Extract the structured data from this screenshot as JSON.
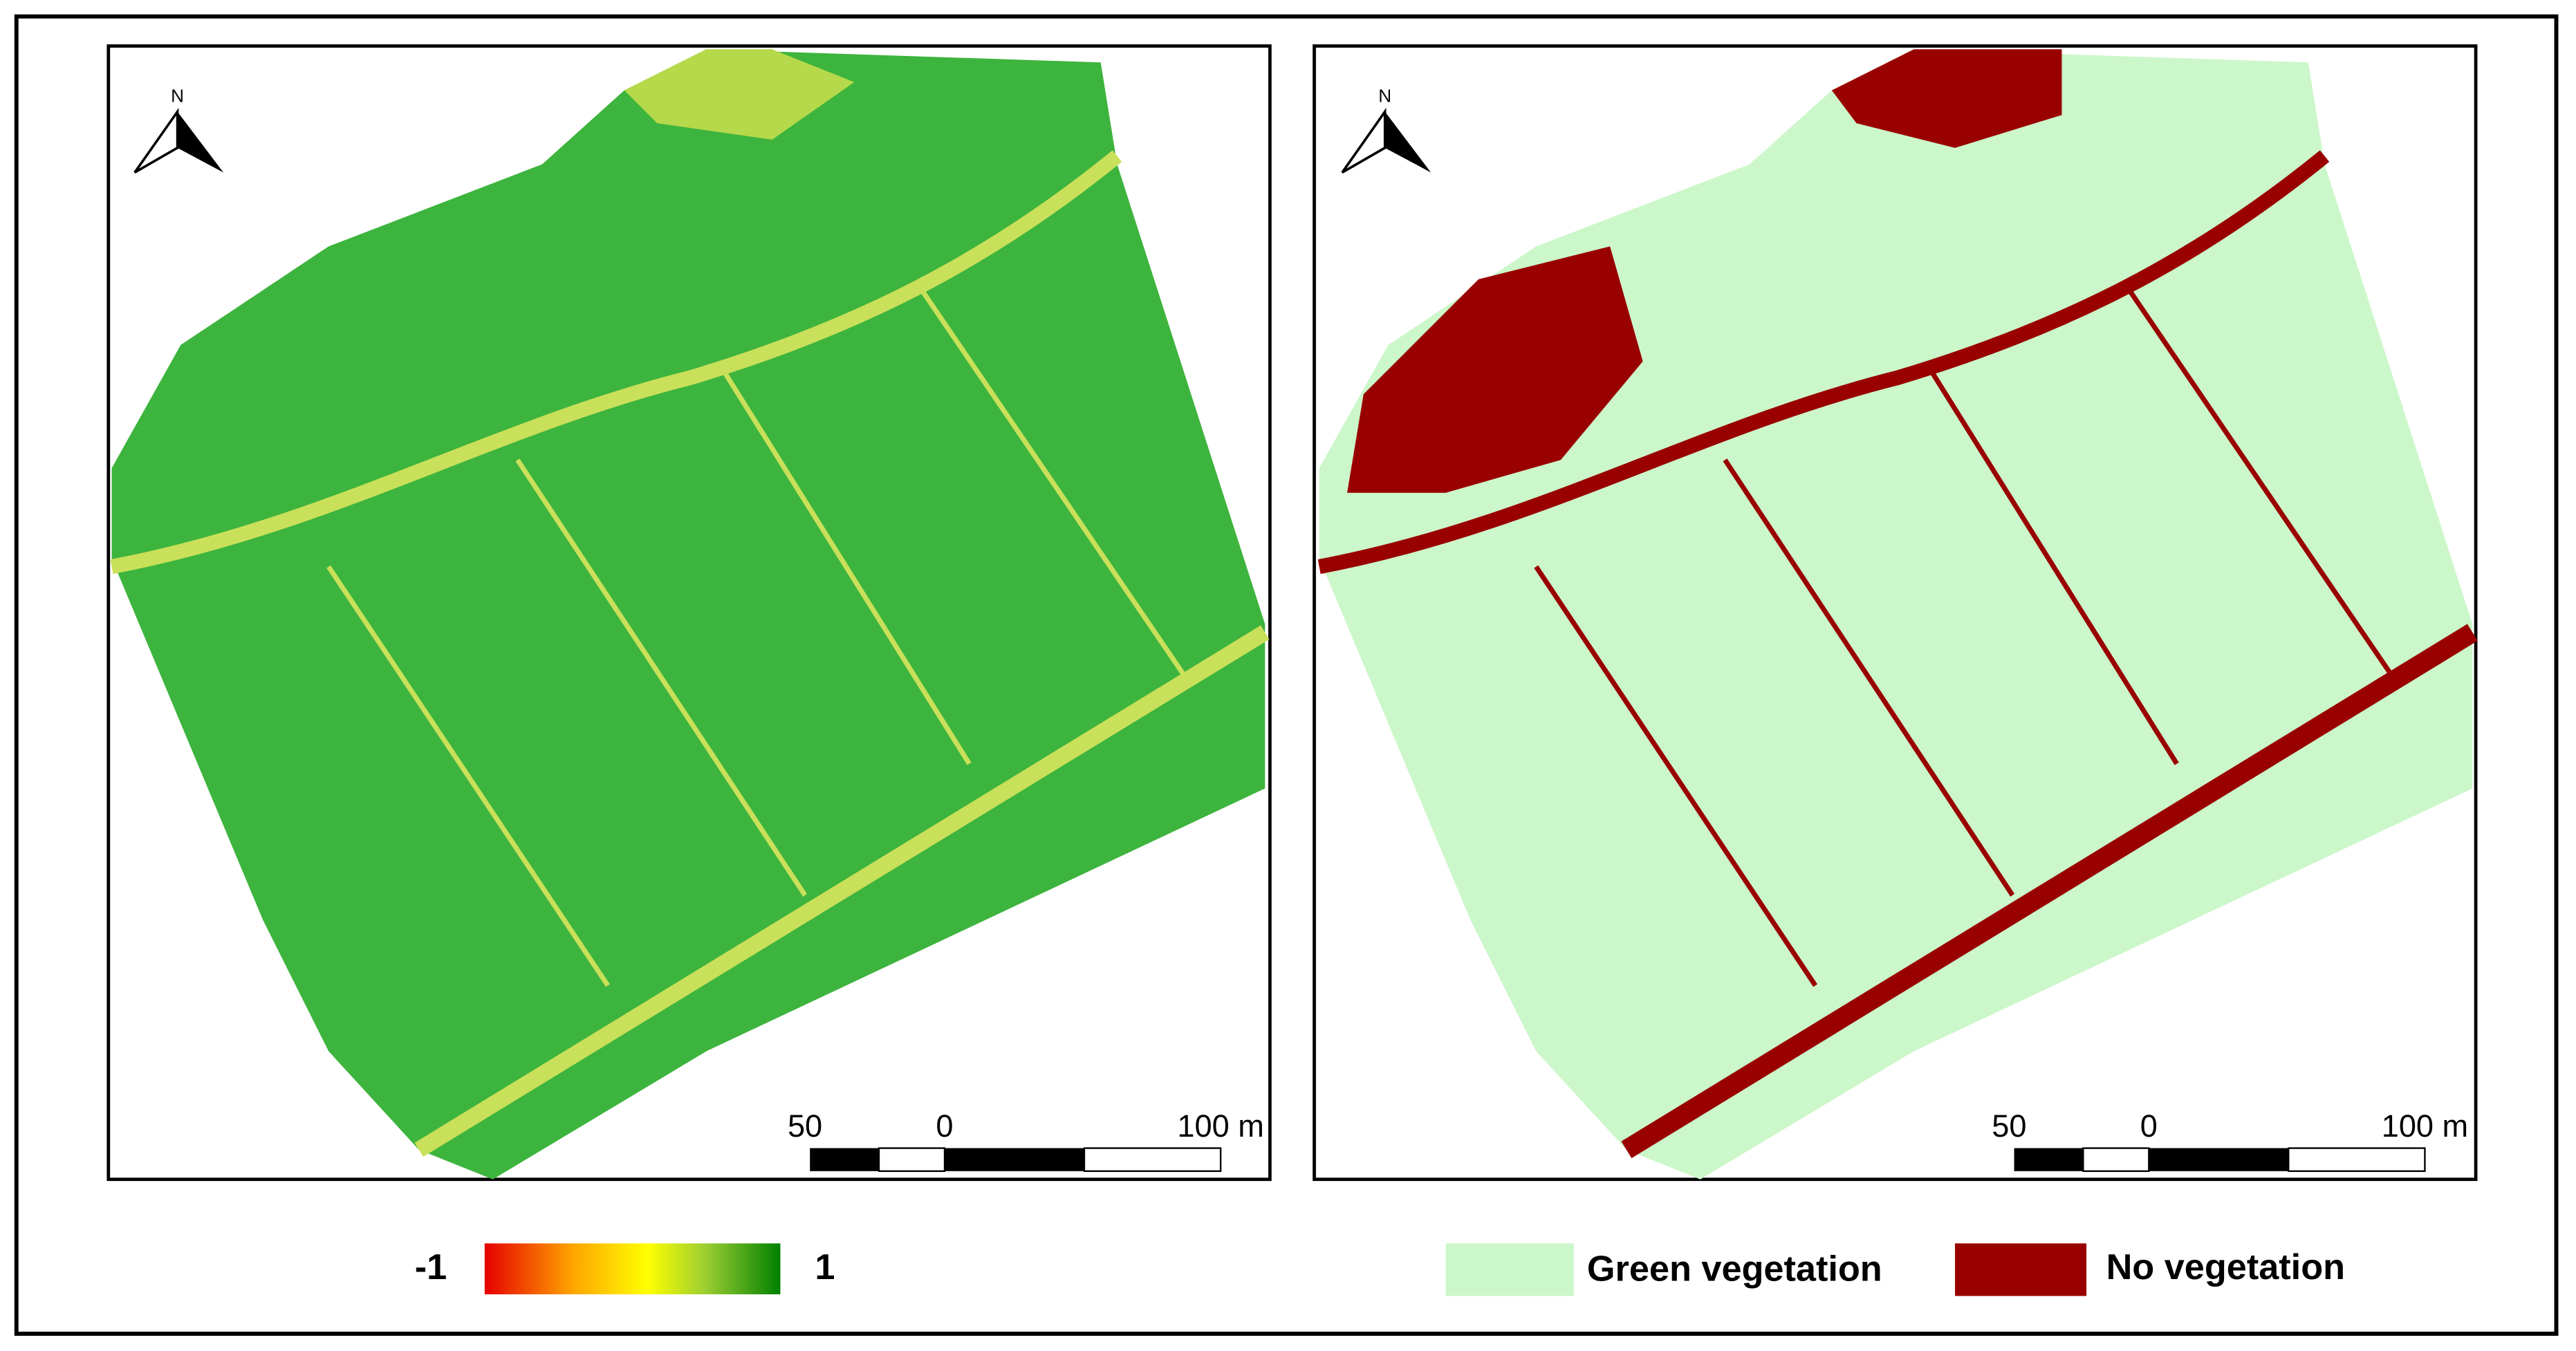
{
  "panels": [
    {
      "north": "N",
      "scale_labels": [
        "50",
        "0",
        "100 m"
      ]
    },
    {
      "north": "N",
      "scale_labels": [
        "50",
        "0",
        "100 m"
      ]
    }
  ],
  "index_legend": {
    "min_label": "-1",
    "max_label": "1"
  },
  "class_legend": [
    {
      "label": "Green vegetation",
      "color": "#ccf7ca"
    },
    {
      "label": "No vegetation",
      "color": "#990000"
    }
  ]
}
